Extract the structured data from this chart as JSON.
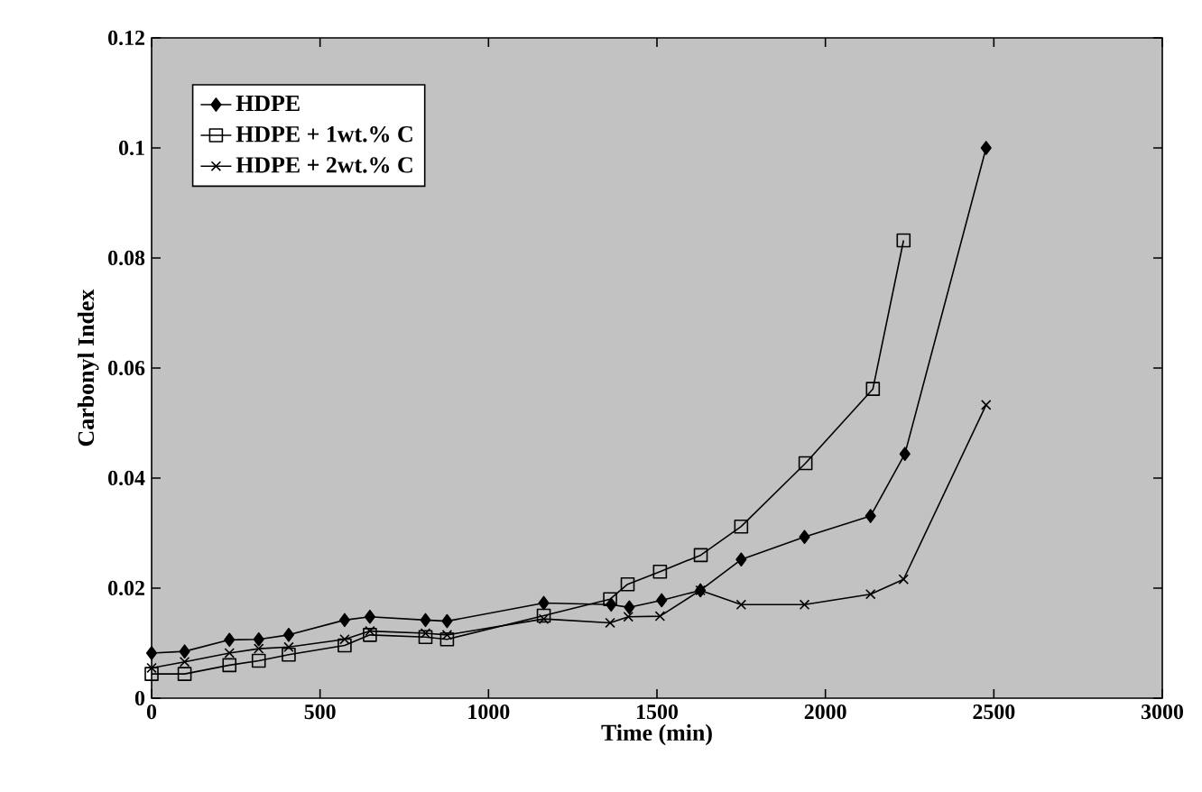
{
  "chart_data": {
    "type": "line",
    "xlabel": "Time (min)",
    "ylabel": "Carbonyl Index",
    "xlim": [
      0,
      3000
    ],
    "xticks": [
      0,
      500,
      1000,
      1500,
      2000,
      2500,
      3000
    ],
    "ylim": [
      0,
      0.12
    ],
    "yticks": [
      0,
      0.02,
      0.04,
      0.06,
      0.08,
      0.1,
      0.12
    ],
    "legend": "top left",
    "grid": false,
    "line_style": "solid",
    "series": [
      {
        "name": "HDPE",
        "color": "#000000",
        "marker": "diamond",
        "x": [
          0,
          98,
          231,
          318,
          407,
          573,
          648,
          813,
          877,
          1164,
          1364,
          1418,
          1514,
          1629,
          1750,
          1938,
          2134,
          2236,
          2477
        ],
        "values": [
          0.0082,
          0.0085,
          0.0106,
          0.0107,
          0.0115,
          0.0142,
          0.0148,
          0.0142,
          0.014,
          0.0173,
          0.017,
          0.0165,
          0.0178,
          0.0196,
          0.0252,
          0.0293,
          0.0331,
          0.0444,
          0.1
        ]
      },
      {
        "name": "HDPE + 1wt.% C",
        "color": "#000000",
        "marker": "square",
        "x": [
          0,
          98,
          231,
          318,
          407,
          573,
          648,
          813,
          877,
          1164,
          1361,
          1413,
          1509,
          1630,
          1750,
          1941,
          2141,
          2232
        ],
        "values": [
          0.0044,
          0.0044,
          0.006,
          0.0068,
          0.0079,
          0.0096,
          0.0115,
          0.0111,
          0.0107,
          0.015,
          0.018,
          0.0207,
          0.023,
          0.026,
          0.0312,
          0.0427,
          0.0562,
          0.0832
        ]
      },
      {
        "name": "HDPE + 2wt.% C",
        "color": "#000000",
        "marker": "cross",
        "x": [
          0,
          98,
          231,
          318,
          407,
          573,
          648,
          813,
          877,
          1164,
          1361,
          1415,
          1509,
          1629,
          1750,
          1938,
          2134,
          2232,
          2477
        ],
        "values": [
          0.0055,
          0.0066,
          0.0082,
          0.009,
          0.0093,
          0.0107,
          0.0122,
          0.0118,
          0.0115,
          0.0144,
          0.0137,
          0.0148,
          0.0149,
          0.0196,
          0.017,
          0.017,
          0.0189,
          0.0216,
          0.0533
        ]
      }
    ]
  }
}
